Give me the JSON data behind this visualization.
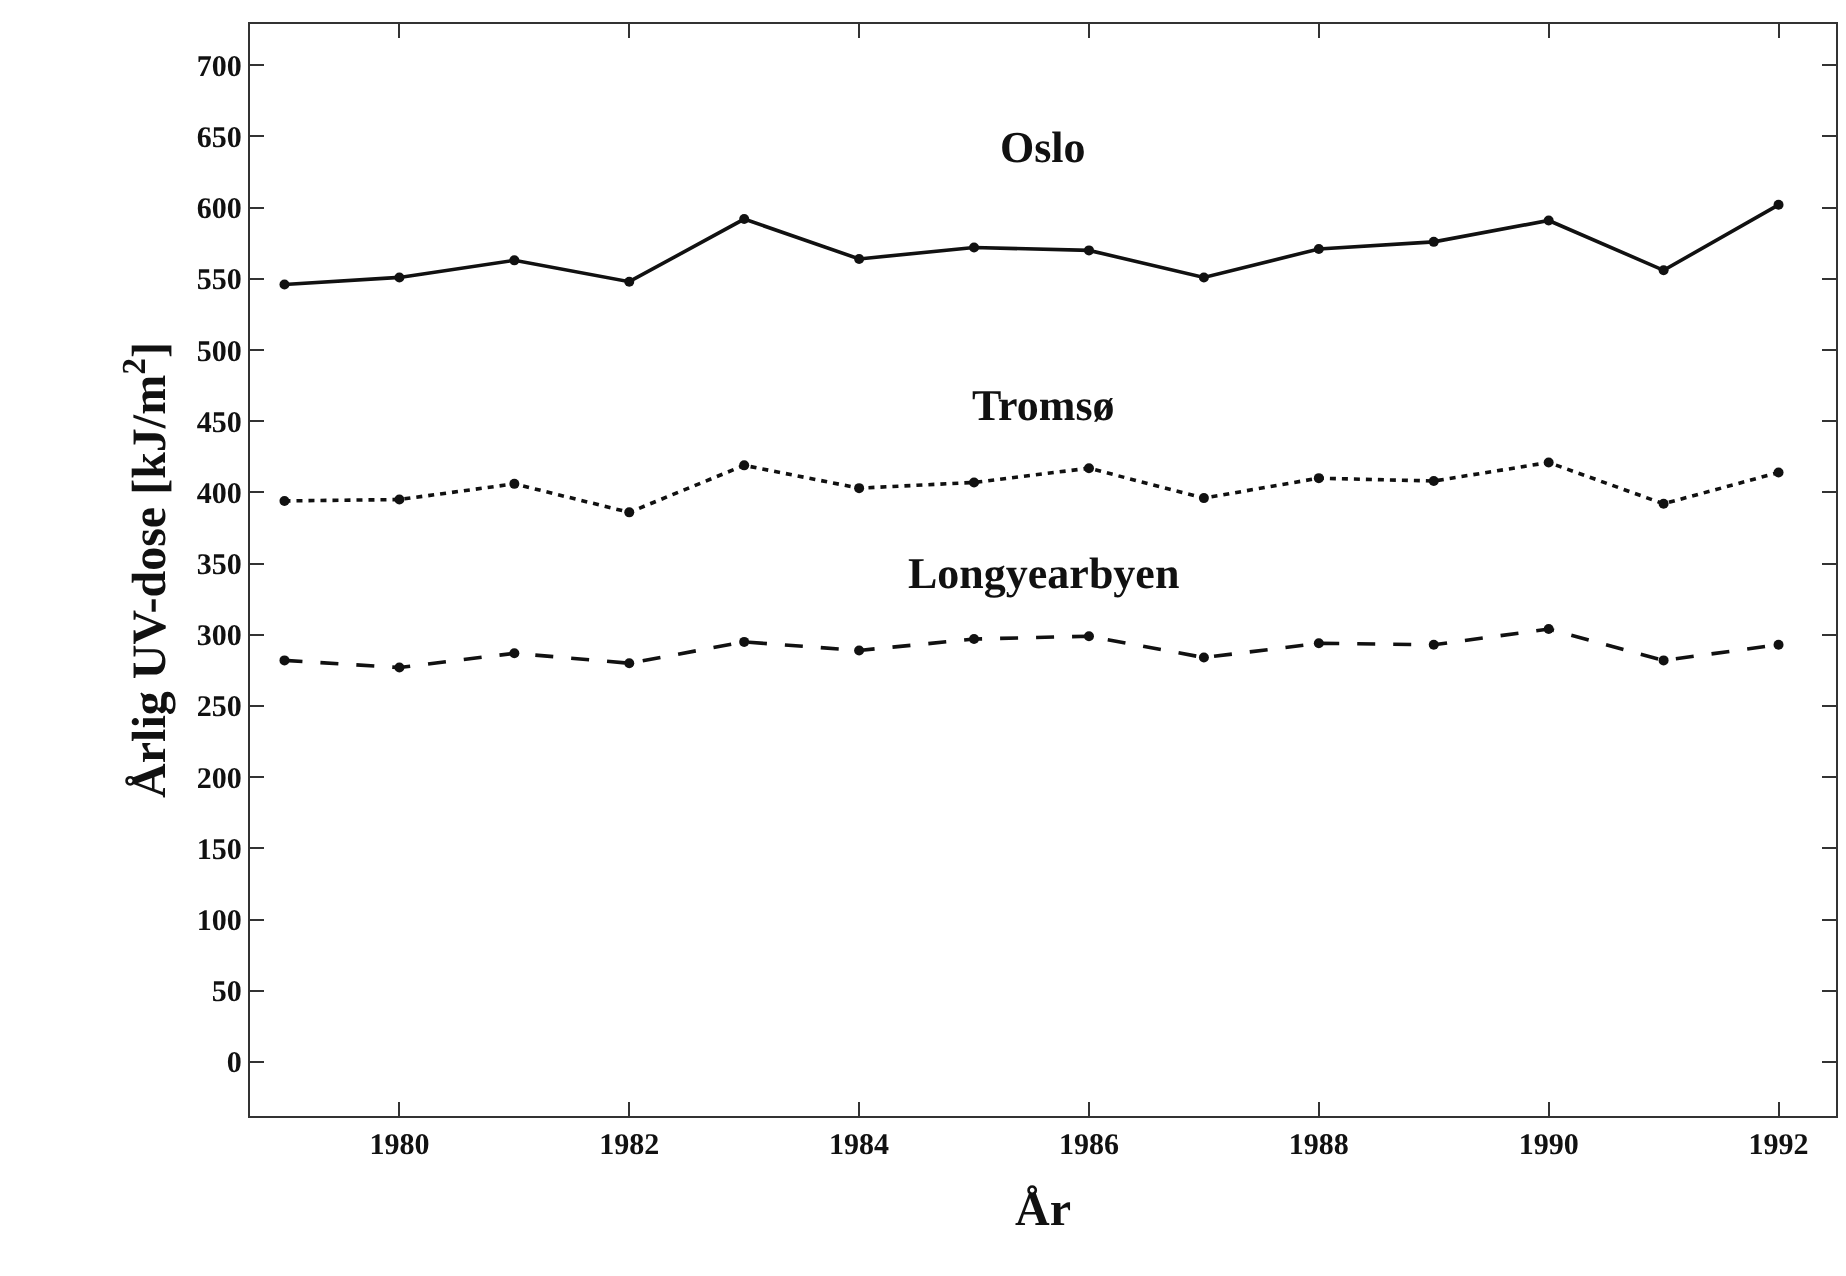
{
  "chart_data": {
    "type": "line",
    "xlabel": "År",
    "ylabel": "Årlig UV-dose [kJ/m$^{2}$]",
    "x": [
      1979,
      1980,
      1981,
      1982,
      1983,
      1984,
      1985,
      1986,
      1987,
      1988,
      1989,
      1990,
      1991,
      1992
    ],
    "series": [
      {
        "name": "Oslo",
        "color": "#111111",
        "line_style": "solid",
        "values": [
          546,
          551,
          563,
          548,
          592,
          564,
          572,
          570,
          551,
          571,
          576,
          591,
          556,
          602
        ]
      },
      {
        "name": "Tromsø",
        "color": "#111111",
        "line_style": "dotted",
        "values": [
          394,
          395,
          406,
          386,
          419,
          403,
          407,
          417,
          396,
          410,
          408,
          421,
          392,
          414
        ]
      },
      {
        "name": "Longyearbyen",
        "color": "#111111",
        "line_style": "dashed",
        "values": [
          282,
          277,
          287,
          280,
          295,
          289,
          297,
          299,
          284,
          294,
          293,
          304,
          282,
          293
        ]
      }
    ],
    "marker": "circle",
    "xlim": [
      1978.7,
      1992.5
    ],
    "xticks": [
      1980,
      1982,
      1984,
      1986,
      1988,
      1990,
      1992
    ],
    "ylim": [
      -38,
      729
    ],
    "yticks": [
      0,
      50,
      100,
      150,
      200,
      250,
      300,
      350,
      400,
      450,
      500,
      550,
      600,
      650,
      700
    ],
    "legend": false
  }
}
